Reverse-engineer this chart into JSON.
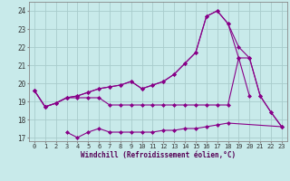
{
  "xlabel": "Windchill (Refroidissement éolien,°C)",
  "bg_color": "#c8eaea",
  "grid_color": "#a8cccc",
  "line_color": "#880088",
  "x": [
    0,
    1,
    2,
    3,
    4,
    5,
    6,
    7,
    8,
    9,
    10,
    11,
    12,
    13,
    14,
    15,
    16,
    17,
    18,
    19,
    20,
    21,
    22,
    23
  ],
  "y_line1": [
    19.6,
    18.7,
    18.9,
    19.2,
    19.2,
    19.2,
    19.2,
    18.8,
    18.8,
    18.8,
    18.8,
    18.8,
    18.8,
    18.8,
    18.8,
    18.8,
    18.8,
    18.8,
    18.8,
    21.4,
    19.3,
    null,
    null,
    null
  ],
  "y_line2": [
    19.6,
    18.7,
    18.9,
    19.2,
    19.3,
    19.5,
    19.7,
    19.8,
    19.9,
    20.1,
    19.7,
    19.9,
    20.1,
    20.5,
    21.1,
    21.7,
    23.7,
    24.0,
    23.3,
    22.0,
    21.4,
    19.3,
    18.4,
    17.6
  ],
  "y_line3": [
    19.6,
    18.7,
    18.9,
    19.2,
    19.3,
    19.5,
    19.7,
    19.8,
    19.9,
    20.1,
    19.7,
    19.9,
    20.1,
    20.5,
    21.1,
    21.7,
    23.7,
    24.0,
    23.3,
    21.4,
    21.4,
    19.3,
    18.4,
    17.6
  ],
  "y_line4": [
    null,
    null,
    null,
    17.3,
    17.0,
    17.3,
    17.5,
    17.3,
    17.3,
    17.3,
    17.3,
    17.3,
    17.4,
    17.4,
    17.5,
    17.5,
    17.6,
    17.7,
    17.8,
    null,
    null,
    null,
    null,
    17.6
  ],
  "ylim": [
    16.8,
    24.5
  ],
  "yticks": [
    17,
    18,
    19,
    20,
    21,
    22,
    23,
    24
  ],
  "xticks": [
    0,
    1,
    2,
    3,
    4,
    5,
    6,
    7,
    8,
    9,
    10,
    11,
    12,
    13,
    14,
    15,
    16,
    17,
    18,
    19,
    20,
    21,
    22,
    23
  ],
  "tick_fontsize": 5.0,
  "xlabel_fontsize": 5.5
}
